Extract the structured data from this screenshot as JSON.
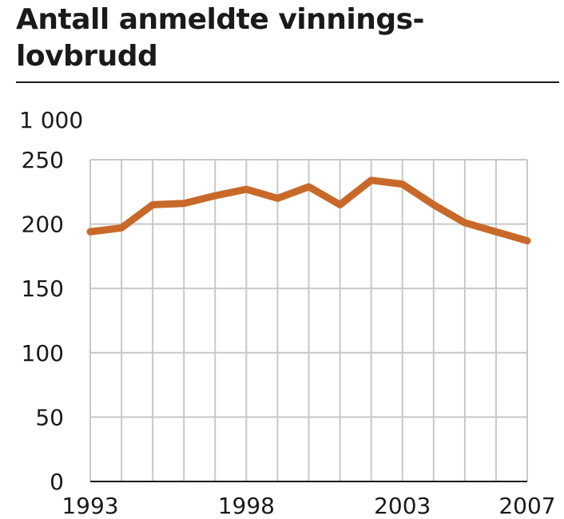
{
  "chart_data": {
    "type": "line",
    "title": "Antall anmeldte vinnings-lovbrudd",
    "unit": "1 000",
    "xlabel": "",
    "ylabel": "",
    "x": [
      1993,
      1994,
      1995,
      1996,
      1997,
      1998,
      1999,
      2000,
      2001,
      2002,
      2003,
      2004,
      2005,
      2006,
      2007
    ],
    "x_tick_labels": [
      "1993",
      "1998",
      "2003",
      "2007"
    ],
    "y_tick_labels": [
      "0",
      "50",
      "100",
      "150",
      "200",
      "250"
    ],
    "ylim": [
      0,
      250
    ],
    "xlim": [
      1993,
      2007
    ],
    "grid": true,
    "series": [
      {
        "values": [
          194,
          197,
          215,
          216,
          222,
          227,
          220,
          229,
          215,
          234,
          231,
          215,
          201,
          194,
          187
        ]
      }
    ],
    "colors": {
      "line": "#c8692a",
      "grid": "#c8c8c8",
      "axis": "#1a1a1a"
    }
  }
}
